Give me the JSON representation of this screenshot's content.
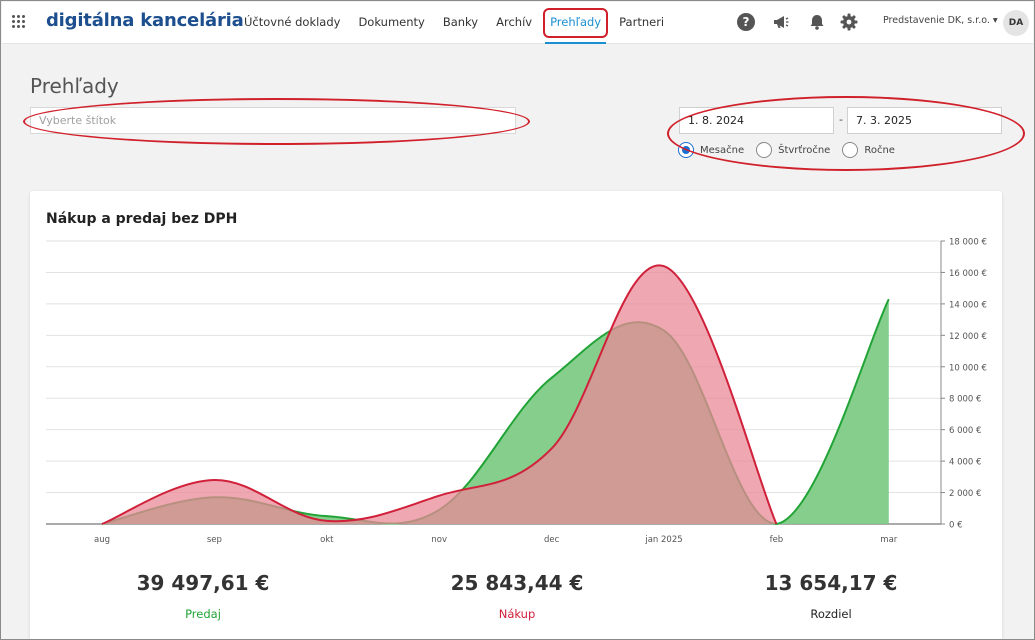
{
  "header": {
    "brand": "digitálna kancelária",
    "nav": [
      "Účtovné doklady",
      "Dokumenty",
      "Banky",
      "Archív",
      "Prehľady",
      "Partneri"
    ],
    "active_nav": "Prehľady",
    "company": "Predstavenie DK, s.r.o. ▾",
    "avatar": "DA",
    "help_label": "?"
  },
  "page": {
    "title": "Prehľady",
    "tag_placeholder": "Vyberte štítok",
    "date_from": "1. 8. 2024",
    "date_separator": "-",
    "date_to": "7. 3. 2025",
    "periods": [
      "Mesačne",
      "Štvrťročne",
      "Ročne"
    ],
    "selected_period": "Mesačne"
  },
  "chart_data": {
    "type": "area",
    "title": "Nákup a predaj bez DPH",
    "categories": [
      "aug",
      "sep",
      "okt",
      "nov",
      "dec",
      "jan 2025",
      "feb",
      "mar"
    ],
    "yticks": [
      "18 000 €",
      "16 000 €",
      "14 000 €",
      "12 000 €",
      "10 000 €",
      "8 000 €",
      "6 000 €",
      "4 000 €",
      "2 000 €",
      "0 €"
    ],
    "ylim": [
      0,
      18000
    ],
    "series": [
      {
        "name": "Predaj",
        "color": "#21a336",
        "fill": "#7ecb86",
        "values": [
          0,
          1700,
          500,
          900,
          9300,
          12300,
          0,
          14300
        ]
      },
      {
        "name": "Nákup",
        "color": "#d0203a",
        "fill": "#ea8a98",
        "values": [
          0,
          2800,
          200,
          1800,
          4800,
          16400,
          0,
          0
        ]
      }
    ],
    "grid": true
  },
  "totals": [
    {
      "value": "39 497,61 €",
      "label": "Predaj",
      "color": "#21a336"
    },
    {
      "value": "25 843,44 €",
      "label": "Nákup",
      "color": "#d0203a"
    },
    {
      "value": "13 654,17 €",
      "label": "Rozdiel",
      "color": "#222222"
    }
  ]
}
